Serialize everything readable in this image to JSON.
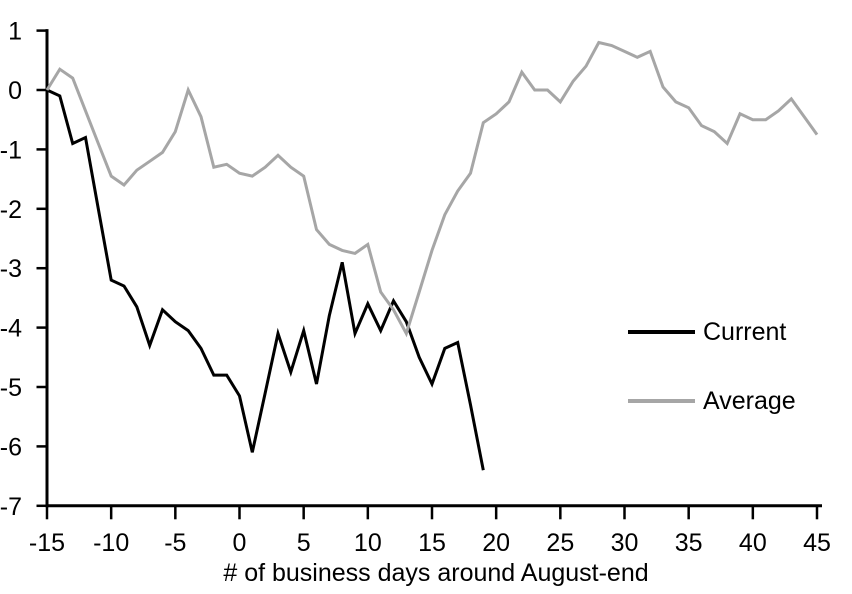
{
  "chart_data": {
    "type": "line",
    "title": "",
    "xlabel": "# of business days around August-end",
    "ylabel": "",
    "xlim": [
      -15,
      45
    ],
    "ylim": [
      -7,
      1
    ],
    "x_ticks": [
      -15,
      -10,
      -5,
      0,
      5,
      10,
      15,
      20,
      25,
      30,
      35,
      40,
      45
    ],
    "y_ticks": [
      1,
      0,
      -1,
      -2,
      -3,
      -4,
      -5,
      -6,
      -7
    ],
    "grid": false,
    "legend_position": "middle-right",
    "axis_color": "#000000",
    "series": [
      {
        "name": "Current",
        "color": "#000000",
        "x_start": -15,
        "x_step": 1,
        "values": [
          0,
          -0.1,
          -0.9,
          -0.8,
          -2.0,
          -3.2,
          -3.3,
          -3.65,
          -4.3,
          -3.7,
          -3.9,
          -4.05,
          -4.35,
          -4.8,
          -4.8,
          -5.15,
          -6.1,
          -5.1,
          -4.1,
          -4.75,
          -4.05,
          -4.95,
          -3.8,
          -2.9,
          -4.1,
          -3.6,
          -4.05,
          -3.55,
          -3.9,
          -4.5,
          -4.95,
          -4.35,
          -4.25,
          -5.3,
          -6.4
        ]
      },
      {
        "name": "Average",
        "color": "#a6a6a6",
        "x_start": -15,
        "x_step": 1,
        "values": [
          0,
          0.35,
          0.2,
          -0.35,
          -0.9,
          -1.45,
          -1.6,
          -1.35,
          -1.2,
          -1.05,
          -0.7,
          0.0,
          -0.45,
          -1.3,
          -1.25,
          -1.4,
          -1.45,
          -1.3,
          -1.1,
          -1.3,
          -1.45,
          -2.35,
          -2.6,
          -2.7,
          -2.75,
          -2.6,
          -3.4,
          -3.7,
          -4.1,
          -3.4,
          -2.7,
          -2.1,
          -1.7,
          -1.4,
          -0.55,
          -0.4,
          -0.2,
          0.3,
          0.0,
          0.0,
          -0.2,
          0.15,
          0.4,
          0.8,
          0.75,
          0.65,
          0.55,
          0.65,
          0.05,
          -0.2,
          -0.3,
          -0.6,
          -0.7,
          -0.9,
          -0.4,
          -0.5,
          -0.5,
          -0.35,
          -0.15,
          -0.45,
          -0.75
        ]
      }
    ]
  }
}
